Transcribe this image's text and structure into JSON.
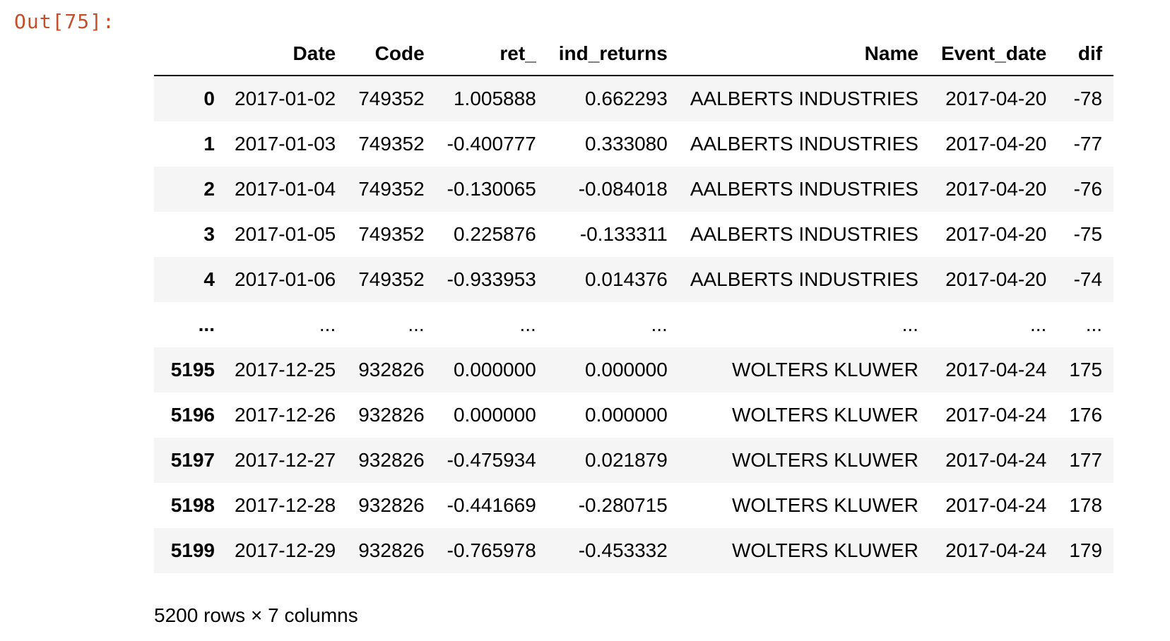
{
  "prompt": "Out[75]:",
  "columns": {
    "index": "",
    "date": "Date",
    "code": "Code",
    "ret": "ret_",
    "ind_returns": "ind_returns",
    "name": "Name",
    "event_date": "Event_date",
    "dif": "dif"
  },
  "rows": [
    {
      "index": "0",
      "date": "2017-01-02",
      "code": "749352",
      "ret": "1.005888",
      "ind_returns": "0.662293",
      "name": "AALBERTS INDUSTRIES",
      "event_date": "2017-04-20",
      "dif": "-78"
    },
    {
      "index": "1",
      "date": "2017-01-03",
      "code": "749352",
      "ret": "-0.400777",
      "ind_returns": "0.333080",
      "name": "AALBERTS INDUSTRIES",
      "event_date": "2017-04-20",
      "dif": "-77"
    },
    {
      "index": "2",
      "date": "2017-01-04",
      "code": "749352",
      "ret": "-0.130065",
      "ind_returns": "-0.084018",
      "name": "AALBERTS INDUSTRIES",
      "event_date": "2017-04-20",
      "dif": "-76"
    },
    {
      "index": "3",
      "date": "2017-01-05",
      "code": "749352",
      "ret": "0.225876",
      "ind_returns": "-0.133311",
      "name": "AALBERTS INDUSTRIES",
      "event_date": "2017-04-20",
      "dif": "-75"
    },
    {
      "index": "4",
      "date": "2017-01-06",
      "code": "749352",
      "ret": "-0.933953",
      "ind_returns": "0.014376",
      "name": "AALBERTS INDUSTRIES",
      "event_date": "2017-04-20",
      "dif": "-74"
    },
    {
      "index": "...",
      "date": "...",
      "code": "...",
      "ret": "...",
      "ind_returns": "...",
      "name": "...",
      "event_date": "...",
      "dif": "..."
    },
    {
      "index": "5195",
      "date": "2017-12-25",
      "code": "932826",
      "ret": "0.000000",
      "ind_returns": "0.000000",
      "name": "WOLTERS KLUWER",
      "event_date": "2017-04-24",
      "dif": "175"
    },
    {
      "index": "5196",
      "date": "2017-12-26",
      "code": "932826",
      "ret": "0.000000",
      "ind_returns": "0.000000",
      "name": "WOLTERS KLUWER",
      "event_date": "2017-04-24",
      "dif": "176"
    },
    {
      "index": "5197",
      "date": "2017-12-27",
      "code": "932826",
      "ret": "-0.475934",
      "ind_returns": "0.021879",
      "name": "WOLTERS KLUWER",
      "event_date": "2017-04-24",
      "dif": "177"
    },
    {
      "index": "5198",
      "date": "2017-12-28",
      "code": "932826",
      "ret": "-0.441669",
      "ind_returns": "-0.280715",
      "name": "WOLTERS KLUWER",
      "event_date": "2017-04-24",
      "dif": "178"
    },
    {
      "index": "5199",
      "date": "2017-12-29",
      "code": "932826",
      "ret": "-0.765978",
      "ind_returns": "-0.453332",
      "name": "WOLTERS KLUWER",
      "event_date": "2017-04-24",
      "dif": "179"
    }
  ],
  "shape_info": "5200 rows × 7 columns",
  "colors": {
    "prompt": "#c3502d",
    "stripe": "#f5f5f5"
  }
}
